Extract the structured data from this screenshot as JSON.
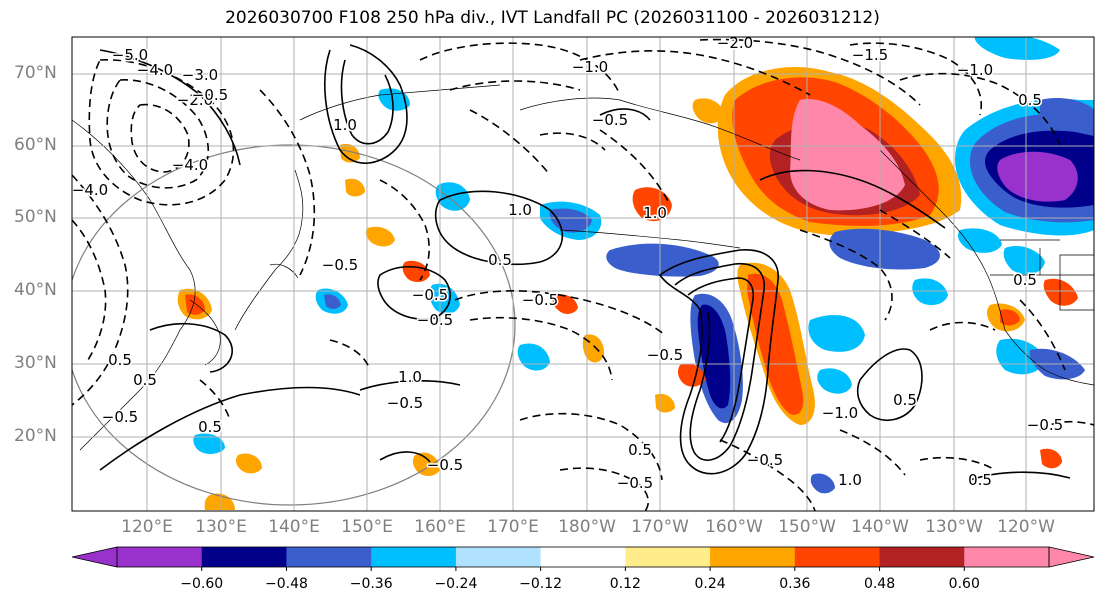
{
  "title": "2026030700 F108 250 hPa div., IVT Landfall PC (2026031100 - 2026031212)",
  "lat_labels": [
    "70°N",
    "60°N",
    "50°N",
    "40°N",
    "30°N",
    "20°N"
  ],
  "lon_labels": [
    "120°E",
    "130°E",
    "140°E",
    "150°E",
    "160°E",
    "170°E",
    "180°W",
    "170°W",
    "160°W",
    "150°W",
    "140°W",
    "130°W",
    "120°W"
  ],
  "colorbar": {
    "colors": [
      "#9932cc",
      "#00008b",
      "#3a5fcd",
      "#00bfff",
      "#b0e2ff",
      "#ffffff",
      "#ffec8b",
      "#ffa500",
      "#ff4500",
      "#b22222",
      "#ff88aa"
    ],
    "tick_labels": [
      "−0.60",
      "−0.48",
      "−0.36",
      "−0.24",
      "−0.12",
      "0.12",
      "0.24",
      "0.36",
      "0.48",
      "0.60"
    ]
  },
  "contour_labels": [
    {
      "text": "−5.0"
    },
    {
      "text": "−4.0"
    },
    {
      "text": "−3.0"
    },
    {
      "text": "−2.0"
    },
    {
      "text": "−0.5"
    },
    {
      "text": "−4.0"
    },
    {
      "text": "−4.0"
    },
    {
      "text": "1.0"
    },
    {
      "text": "1.0"
    },
    {
      "text": "1.0"
    },
    {
      "text": "−0.5"
    },
    {
      "text": "−0.5"
    },
    {
      "text": "−0.5"
    },
    {
      "text": "0.5"
    },
    {
      "text": "−0.5"
    },
    {
      "text": "1.0"
    },
    {
      "text": "−0.5"
    },
    {
      "text": "−0.5"
    },
    {
      "text": "0.5"
    },
    {
      "text": "0.5"
    },
    {
      "text": "−0.5"
    },
    {
      "text": "0.5"
    },
    {
      "text": "0.5"
    },
    {
      "text": "−0.5"
    },
    {
      "text": "0.5"
    },
    {
      "text": "0.5"
    },
    {
      "text": "−0.5"
    },
    {
      "text": "1.0"
    },
    {
      "text": "−1.0"
    },
    {
      "text": "−2.0"
    },
    {
      "text": "−1.5"
    },
    {
      "text": "−1.0"
    },
    {
      "text": "0.5"
    },
    {
      "text": "−0.5"
    },
    {
      "text": "−0.5"
    },
    {
      "text": "−1.0"
    },
    {
      "text": "0.5"
    },
    {
      "text": "−0.5"
    }
  ]
}
